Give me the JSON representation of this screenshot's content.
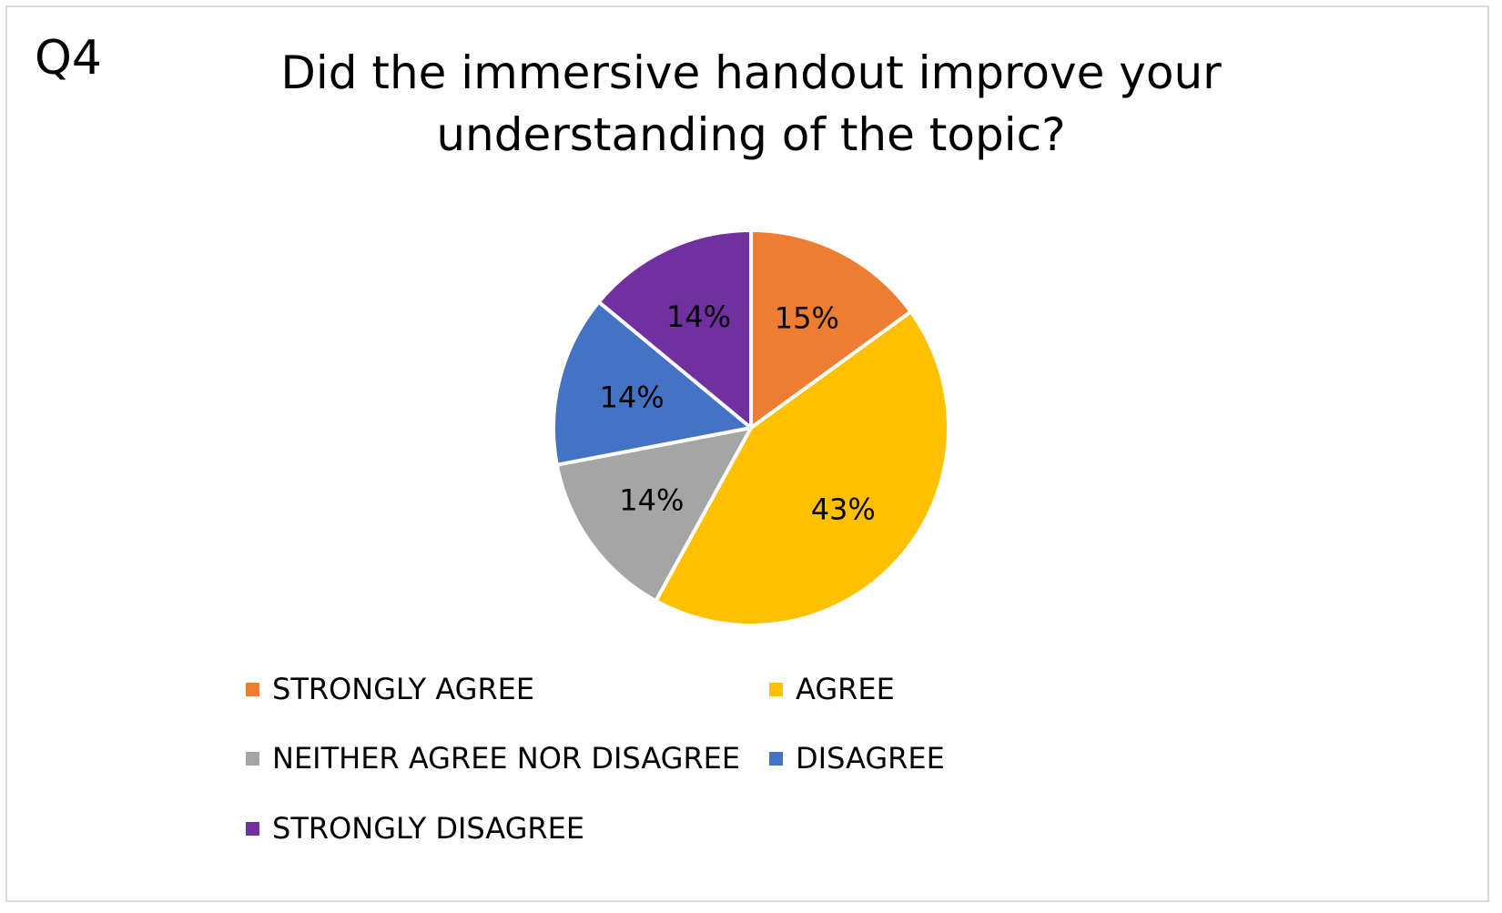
{
  "chart_data": {
    "type": "pie",
    "title": "Did the immersive handout improve your understanding of the topic?",
    "title_lines": [
      "Did the immersive handout improve your",
      "understanding of the topic?"
    ],
    "question_label": "Q4",
    "slices": [
      {
        "name": "STRONGLY AGREE",
        "value": 15,
        "label": "15%",
        "color": "#ED7D31"
      },
      {
        "name": "AGREE",
        "value": 43,
        "label": "43%",
        "color": "#FFC000"
      },
      {
        "name": "NEITHER AGREE NOR DISAGREE",
        "value": 14,
        "label": "14%",
        "color": "#A5A5A5"
      },
      {
        "name": "DISAGREE",
        "value": 14,
        "label": "14%",
        "color": "#4472C4"
      },
      {
        "name": "STRONGLY DISAGREE",
        "value": 14,
        "label": "14%",
        "color": "#7030A0"
      }
    ],
    "legend_position": "bottom"
  }
}
